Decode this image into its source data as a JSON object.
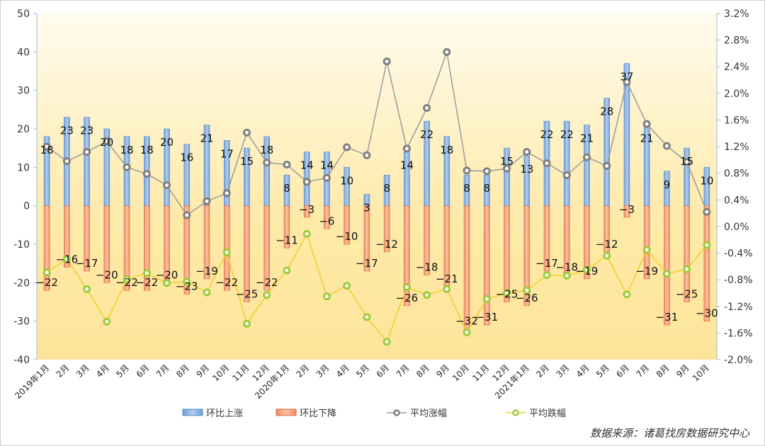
{
  "chart_data": {
    "type": "bar+line",
    "title": "",
    "categories": [
      "2019年1月",
      "2月",
      "3月",
      "4月",
      "5月",
      "6月",
      "7月",
      "8月",
      "9月",
      "10月",
      "11月",
      "12月",
      "2020年1月",
      "2月",
      "3月",
      "4月",
      "5月",
      "6月",
      "7月",
      "8月",
      "9月",
      "10月",
      "11月",
      "12月",
      "2021年1月",
      "2月",
      "3月",
      "4月",
      "5月",
      "6月",
      "7月",
      "8月",
      "9月",
      "10月"
    ],
    "left_axis": {
      "range": [
        -40,
        50
      ],
      "ticks": [
        50,
        40,
        30,
        20,
        10,
        0,
        -10,
        -20,
        -30,
        -40
      ]
    },
    "right_axis": {
      "range": [
        -2.0,
        3.2
      ],
      "unit": "%",
      "ticks": [
        "3.2%",
        "2.8%",
        "2.4%",
        "2.0%",
        "1.6%",
        "1.2%",
        "0.8%",
        "0.4%",
        "0.0%",
        "-0.4%",
        "-0.8%",
        "-1.2%",
        "-1.6%",
        "-2.0%"
      ]
    },
    "series": [
      {
        "name": "环比上涨",
        "kind": "bar",
        "axis": "left",
        "color": "#8fb6e0",
        "values": [
          18,
          23,
          23,
          20,
          18,
          18,
          20,
          16,
          21,
          17,
          15,
          18,
          8,
          14,
          14,
          10,
          3,
          8,
          14,
          22,
          18,
          8,
          8,
          15,
          13,
          22,
          22,
          21,
          28,
          37,
          21,
          9,
          15,
          10
        ]
      },
      {
        "name": "环比下降",
        "kind": "bar",
        "axis": "left",
        "color": "#f7a982",
        "values": [
          -22,
          -16,
          -17,
          -20,
          -22,
          -22,
          -20,
          -23,
          -19,
          -22,
          -25,
          -22,
          -11,
          -3,
          -6,
          -10,
          -17,
          -12,
          -26,
          -18,
          -21,
          -32,
          -31,
          -25,
          -26,
          -17,
          -18,
          -19,
          -12,
          -3,
          -19,
          -31,
          -25,
          -30
        ]
      },
      {
        "name": "平均涨幅",
        "kind": "line",
        "axis": "right",
        "color": "#8c8c8c",
        "values": [
          1.2,
          0.98,
          1.12,
          1.28,
          0.89,
          0.79,
          0.62,
          0.17,
          0.38,
          0.5,
          1.41,
          0.96,
          0.93,
          0.67,
          0.73,
          1.19,
          1.07,
          2.48,
          1.17,
          1.78,
          2.62,
          0.84,
          0.83,
          0.87,
          1.12,
          0.95,
          0.77,
          1.04,
          0.91,
          2.17,
          1.54,
          1.21,
          0.97,
          0.22
        ]
      },
      {
        "name": "平均跌幅",
        "kind": "line",
        "axis": "right",
        "color": "#e8cc2a",
        "values": [
          -0.69,
          -0.49,
          -0.94,
          -1.43,
          -0.79,
          -0.7,
          -0.85,
          -0.83,
          -0.99,
          -0.39,
          -1.46,
          -1.03,
          -0.66,
          -0.11,
          -1.05,
          -0.89,
          -1.36,
          -1.73,
          -0.91,
          -1.03,
          -0.94,
          -1.59,
          -1.09,
          -1.0,
          -0.96,
          -0.73,
          -0.74,
          -0.65,
          -0.44,
          -1.02,
          -0.35,
          -0.71,
          -0.64,
          -0.28
        ]
      }
    ],
    "legend_position": "bottom",
    "grid": false
  },
  "source": "数据来源：诸葛找房数据研究中心"
}
